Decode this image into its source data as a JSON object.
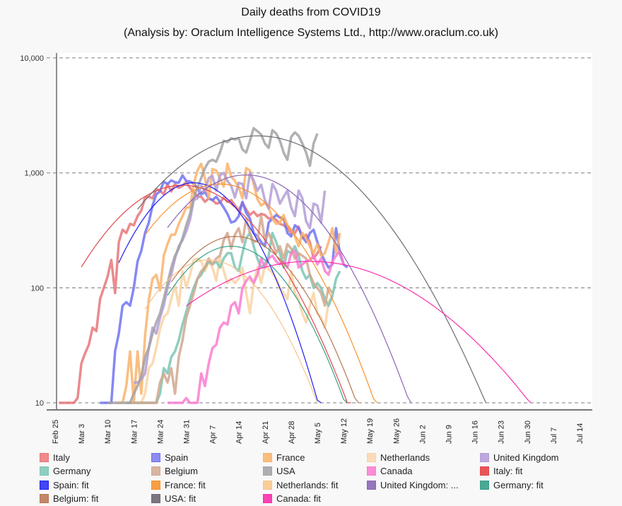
{
  "chart_data": {
    "type": "line",
    "title": "Daily deaths from COVID19",
    "subtitle": "(Analysis by: Oraclum Intelligence Systems Ltd., http://www.oraclum.co.uk)",
    "yscale": "log",
    "ylim": [
      10,
      10000
    ],
    "yticks": [
      {
        "value": 10,
        "label": "10"
      },
      {
        "value": 100,
        "label": "100"
      },
      {
        "value": 1000,
        "label": "1,000"
      },
      {
        "value": 10000,
        "label": "10,000"
      }
    ],
    "grid": true,
    "x_start": "Feb 25",
    "x_range_days": [
      0,
      140
    ],
    "xticks": [
      {
        "day": 0,
        "label": "Feb 25"
      },
      {
        "day": 7,
        "label": "Mar 3"
      },
      {
        "day": 14,
        "label": "Mar 10"
      },
      {
        "day": 21,
        "label": "Mar 17"
      },
      {
        "day": 28,
        "label": "Mar 24"
      },
      {
        "day": 35,
        "label": "Mar 31"
      },
      {
        "day": 42,
        "label": "Apr 7"
      },
      {
        "day": 49,
        "label": "Apr 14"
      },
      {
        "day": 56,
        "label": "Apr 21"
      },
      {
        "day": 63,
        "label": "Apr 28"
      },
      {
        "day": 70,
        "label": "May 5"
      },
      {
        "day": 77,
        "label": "May 12"
      },
      {
        "day": 84,
        "label": "May 19"
      },
      {
        "day": 91,
        "label": "May 26"
      },
      {
        "day": 98,
        "label": "Jun 2"
      },
      {
        "day": 105,
        "label": "Jun 9"
      },
      {
        "day": 112,
        "label": "Jun 16"
      },
      {
        "day": 119,
        "label": "Jun 23"
      },
      {
        "day": 126,
        "label": "Jun 30"
      },
      {
        "day": 133,
        "label": "Jul 7"
      },
      {
        "day": 140,
        "label": "Jul 14"
      }
    ],
    "legend_position": "bottom",
    "series": [
      {
        "name": "Italy",
        "kind": "data",
        "color": "#e8767a",
        "start_day": 1,
        "values": [
          10,
          10,
          10,
          10,
          10,
          11,
          22,
          27,
          32,
          45,
          42,
          80,
          100,
          125,
          175,
          90,
          250,
          320,
          300,
          360,
          350,
          420,
          470,
          610,
          620,
          600,
          720,
          700,
          650,
          800,
          690,
          800,
          740,
          770,
          830,
          740,
          680,
          620,
          620,
          560,
          600,
          580,
          540,
          550,
          610,
          560,
          580,
          520,
          470,
          550,
          480,
          430,
          460,
          420,
          440,
          430,
          400,
          410,
          390,
          360,
          350,
          330,
          300,
          300,
          340,
          270,
          290,
          250,
          180,
          200,
          230
        ]
      },
      {
        "name": "Spain",
        "kind": "data",
        "color": "#7073f2",
        "start_day": 12,
        "values": [
          10,
          10,
          10,
          10,
          28,
          40,
          70,
          75,
          70,
          100,
          170,
          210,
          300,
          370,
          520,
          650,
          690,
          840,
          800,
          860,
          830,
          820,
          950,
          850,
          840,
          810,
          730,
          650,
          680,
          600,
          580,
          620,
          560,
          500,
          440,
          370,
          380,
          420,
          560,
          450,
          400,
          300,
          280,
          250,
          230,
          370,
          400,
          430,
          410,
          400,
          300,
          280,
          350,
          330,
          280,
          250,
          300,
          320,
          250,
          200,
          170,
          150,
          160,
          330,
          200,
          160,
          150
        ]
      },
      {
        "name": "France",
        "kind": "data",
        "color": "#f9b36b",
        "start_day": 16,
        "values": [
          10,
          10,
          10,
          14,
          28,
          10,
          28,
          12,
          38,
          78,
          120,
          130,
          95,
          190,
          240,
          290,
          290,
          360,
          420,
          500,
          500,
          800,
          1050,
          1200,
          900,
          600,
          1080,
          1050,
          900,
          760,
          1200,
          930,
          850,
          750,
          600,
          1100,
          1050,
          800,
          590,
          520,
          550,
          500,
          400,
          360,
          370,
          430,
          350,
          320,
          280,
          230,
          300,
          270,
          230,
          200,
          240,
          190,
          200,
          250,
          330,
          200,
          300
        ]
      },
      {
        "name": "Netherlands",
        "kind": "data",
        "color": "#f9d3a5",
        "start_day": 16,
        "values": [
          10,
          10,
          10,
          10,
          10,
          10,
          10,
          10,
          12,
          20,
          22,
          30,
          44,
          56,
          60,
          80,
          105,
          70,
          140,
          100,
          130,
          175,
          180,
          170,
          140,
          170,
          150,
          115,
          185,
          140,
          110,
          120,
          110,
          120,
          150,
          90,
          60,
          110,
          150,
          110,
          160,
          145,
          135,
          120,
          100,
          90,
          80,
          140,
          90,
          80,
          60,
          50,
          70,
          90,
          60,
          55,
          45,
          75,
          85
        ]
      },
      {
        "name": "United Kingdom",
        "kind": "data",
        "color": "#b39ed6",
        "start_day": 21,
        "values": [
          15,
          15,
          16,
          18,
          30,
          45,
          40,
          55,
          70,
          100,
          130,
          180,
          230,
          260,
          310,
          390,
          580,
          600,
          780,
          700,
          900,
          940,
          700,
          950,
          1000,
          850,
          770,
          610,
          820,
          800,
          600,
          1000,
          860,
          700,
          790,
          580,
          490,
          800,
          700,
          540,
          620,
          700,
          500,
          420,
          700,
          600,
          380,
          330,
          540,
          520,
          370,
          700
        ]
      },
      {
        "name": "Germany",
        "kind": "data",
        "color": "#7ac6b4",
        "start_day": 19,
        "values": [
          10,
          10,
          10,
          10,
          10,
          10,
          10,
          10,
          10,
          12,
          20,
          18,
          25,
          28,
          35,
          48,
          62,
          80,
          100,
          120,
          130,
          150,
          170,
          160,
          170,
          150,
          180,
          200,
          200,
          150,
          140,
          200,
          270,
          300,
          230,
          180,
          150,
          160,
          190,
          300,
          250,
          200,
          150,
          210,
          200,
          230,
          190,
          140,
          120,
          130,
          100,
          110,
          100,
          80,
          70,
          85,
          120,
          140
        ]
      },
      {
        "name": "Belgium",
        "kind": "data",
        "color": "#d2a78e",
        "start_day": 19,
        "values": [
          10,
          10,
          10,
          10,
          10,
          10,
          10,
          10,
          10,
          15,
          18,
          15,
          20,
          12,
          25,
          35,
          55,
          70,
          90,
          120,
          140,
          150,
          180,
          160,
          180,
          190,
          260,
          300,
          220,
          290,
          330,
          250,
          400,
          300,
          250,
          260,
          420,
          260,
          300,
          250,
          200,
          230,
          180,
          240,
          220,
          180,
          200,
          190,
          180,
          130,
          110,
          100,
          90,
          70,
          100,
          90
        ]
      },
      {
        "name": "USA",
        "kind": "data",
        "color": "#a3a2a6",
        "start_day": 14,
        "values": [
          10,
          10,
          10,
          10,
          10,
          10,
          10,
          12,
          14,
          17,
          25,
          30,
          40,
          50,
          60,
          80,
          110,
          150,
          190,
          220,
          270,
          350,
          440,
          600,
          750,
          900,
          1100,
          1250,
          1300,
          1250,
          1500,
          1900,
          1850,
          2000,
          1950,
          2000,
          1600,
          1500,
          1900,
          2450,
          2300,
          2150,
          1800,
          1650,
          2350,
          2200,
          1900,
          1500,
          1300,
          2050,
          2250,
          2100,
          1800,
          1500,
          1150,
          1800,
          2200
        ]
      },
      {
        "name": "Canada",
        "kind": "data",
        "color": "#f97dd0",
        "start_day": 30,
        "values": [
          10,
          10,
          10,
          10,
          10,
          11,
          10,
          10,
          10,
          18,
          14,
          22,
          30,
          32,
          45,
          50,
          48,
          70,
          75,
          60,
          100,
          115,
          125,
          110,
          130,
          180,
          150,
          180,
          190,
          170,
          160,
          170,
          150,
          200,
          210,
          150,
          160,
          170,
          175,
          190,
          160,
          180,
          140,
          130,
          170,
          190,
          210,
          160
        ]
      },
      {
        "name": "Italy: fit",
        "kind": "fit",
        "color": "#e0484b",
        "start_day": 7,
        "end_day": 118,
        "peak_day": 34,
        "peak_value": 780,
        "width_days": 32
      },
      {
        "name": "Spain: fit",
        "kind": "fit",
        "color": "#1d1ef0",
        "start_day": 17,
        "end_day": 104,
        "peak_day": 37,
        "peak_value": 820,
        "width_days": 24
      },
      {
        "name": "France: fit",
        "kind": "fit",
        "color": "#f8922d",
        "start_day": 24,
        "end_day": 120,
        "peak_day": 44,
        "peak_value": 800,
        "width_days": 30
      },
      {
        "name": "Netherlands: fit",
        "kind": "fit",
        "color": "#f9c58c",
        "start_day": 24,
        "end_day": 91,
        "peak_day": 41,
        "peak_value": 175,
        "width_days": 26
      },
      {
        "name": "United Kingdom: ...",
        "kind": "fit",
        "color": "#8b66b7",
        "start_day": 30,
        "end_day": 126,
        "peak_day": 51,
        "peak_value": 960,
        "width_days": 31
      },
      {
        "name": "Germany: fit",
        "kind": "fit",
        "color": "#3a9f8a",
        "start_day": 30,
        "end_day": 104,
        "peak_day": 47,
        "peak_value": 230,
        "width_days": 26
      },
      {
        "name": "Belgium: fit",
        "kind": "fit",
        "color": "#b8774f",
        "start_day": 31,
        "end_day": 110,
        "peak_day": 48,
        "peak_value": 280,
        "width_days": 27
      },
      {
        "name": "USA: fit",
        "kind": "fit",
        "color": "#6f6a73",
        "start_day": 22,
        "end_day": 140,
        "peak_day": 54,
        "peak_value": 2100,
        "width_days": 40
      },
      {
        "name": "Canada: fit",
        "kind": "fit",
        "color": "#f931ac",
        "start_day": 35,
        "end_day": 140,
        "peak_day": 68,
        "peak_value": 170,
        "width_days": 53
      }
    ]
  },
  "legend": [
    {
      "label": "Italy",
      "color": "#f08a8d",
      "border": "#e8767a"
    },
    {
      "label": "Spain",
      "color": "#8a8cf4",
      "border": "#7073f2"
    },
    {
      "label": "France",
      "color": "#fbbd7e",
      "border": "#f9b36b"
    },
    {
      "label": "Netherlands",
      "color": "#fbdcb8",
      "border": "#f9d3a5"
    },
    {
      "label": "United Kingdom",
      "color": "#bda9dc",
      "border": "#b39ed6"
    },
    {
      "label": "Germany",
      "color": "#8ccfc0",
      "border": "#7ac6b4"
    },
    {
      "label": "Belgium",
      "color": "#d9b4a0",
      "border": "#d2a78e"
    },
    {
      "label": "USA",
      "color": "#aeadb1",
      "border": "#a3a2a6"
    },
    {
      "label": "Canada",
      "color": "#fb8ed6",
      "border": "#f97dd0"
    },
    {
      "label": "Italy: fit",
      "color": "#e85558",
      "border": "#e0484b"
    },
    {
      "label": "Spain: fit",
      "color": "#4446f3",
      "border": "#1d1ef0"
    },
    {
      "label": "France: fit",
      "color": "#f99d42",
      "border": "#f8922d"
    },
    {
      "label": "Netherlands: fit",
      "color": "#facd98",
      "border": "#f9c58c"
    },
    {
      "label": "United Kingdom: ...",
      "color": "#9677bd",
      "border": "#8b66b7"
    },
    {
      "label": "Germany: fit",
      "color": "#4aa995",
      "border": "#3a9f8a"
    },
    {
      "label": "Belgium: fit",
      "color": "#c3876a",
      "border": "#b8774f"
    },
    {
      "label": "USA: fit",
      "color": "#7b7680",
      "border": "#6f6a73"
    },
    {
      "label": "Canada: fit",
      "color": "#fa43b4",
      "border": "#f931ac"
    }
  ]
}
